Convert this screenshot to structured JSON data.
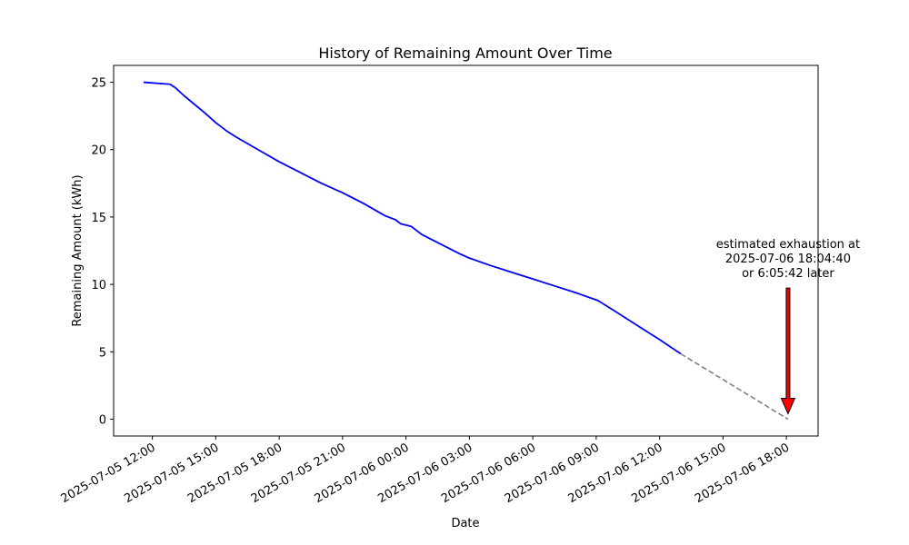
{
  "chart_data": {
    "type": "line",
    "title": "History of Remaining Amount Over Time",
    "xlabel": "Date",
    "ylabel": "Remaining Amount (kWh)",
    "xlim": [
      "2025-07-05 10:10",
      "2025-07-06 19:30"
    ],
    "ylim": [
      -1.25,
      26.25
    ],
    "x_ticks": [
      "2025-07-05 12:00",
      "2025-07-05 15:00",
      "2025-07-05 18:00",
      "2025-07-05 21:00",
      "2025-07-06 00:00",
      "2025-07-06 03:00",
      "2025-07-06 06:00",
      "2025-07-06 09:00",
      "2025-07-06 12:00",
      "2025-07-06 15:00",
      "2025-07-06 18:00"
    ],
    "y_ticks": [
      0,
      5,
      10,
      15,
      20,
      25
    ],
    "grid": false,
    "series": [
      {
        "style": "solid",
        "color": "#0000ff",
        "points": [
          [
            "2025-07-05 11:35",
            25.0
          ],
          [
            "2025-07-05 12:50",
            24.85
          ],
          [
            "2025-07-05 13:05",
            24.6
          ],
          [
            "2025-07-05 13:30",
            24.0
          ],
          [
            "2025-07-05 14:30",
            22.7
          ],
          [
            "2025-07-05 15:00",
            22.0
          ],
          [
            "2025-07-05 15:30",
            21.4
          ],
          [
            "2025-07-05 16:00",
            20.9
          ],
          [
            "2025-07-05 17:00",
            20.0
          ],
          [
            "2025-07-05 18:00",
            19.1
          ],
          [
            "2025-07-05 19:00",
            18.3
          ],
          [
            "2025-07-05 20:00",
            17.5
          ],
          [
            "2025-07-05 21:00",
            16.8
          ],
          [
            "2025-07-05 22:00",
            16.0
          ],
          [
            "2025-07-05 23:00",
            15.1
          ],
          [
            "2025-07-05 23:30",
            14.8
          ],
          [
            "2025-07-05 23:45",
            14.5
          ],
          [
            "2025-07-06 00:15",
            14.3
          ],
          [
            "2025-07-06 00:45",
            13.7
          ],
          [
            "2025-07-06 01:30",
            13.1
          ],
          [
            "2025-07-06 02:30",
            12.3
          ],
          [
            "2025-07-06 03:00",
            11.95
          ],
          [
            "2025-07-06 04:00",
            11.4
          ],
          [
            "2025-07-06 05:00",
            10.9
          ],
          [
            "2025-07-06 06:00",
            10.4
          ],
          [
            "2025-07-06 07:00",
            9.9
          ],
          [
            "2025-07-06 08:00",
            9.4
          ],
          [
            "2025-07-06 09:05",
            8.8
          ],
          [
            "2025-07-06 10:00",
            7.9
          ],
          [
            "2025-07-06 11:00",
            6.9
          ],
          [
            "2025-07-06 12:00",
            5.9
          ],
          [
            "2025-07-06 13:00",
            4.85
          ]
        ]
      },
      {
        "style": "dashed",
        "color": "#808080",
        "points": [
          [
            "2025-07-06 13:00",
            4.85
          ],
          [
            "2025-07-06 18:04:40",
            0
          ]
        ]
      }
    ],
    "annotation": {
      "lines": [
        "estimated exhaustion at",
        "2025-07-06 18:04:40",
        "or 6:05:42 later"
      ],
      "target": [
        "2025-07-06 18:04:40",
        0
      ],
      "arrow_color": "#ff0000"
    }
  }
}
